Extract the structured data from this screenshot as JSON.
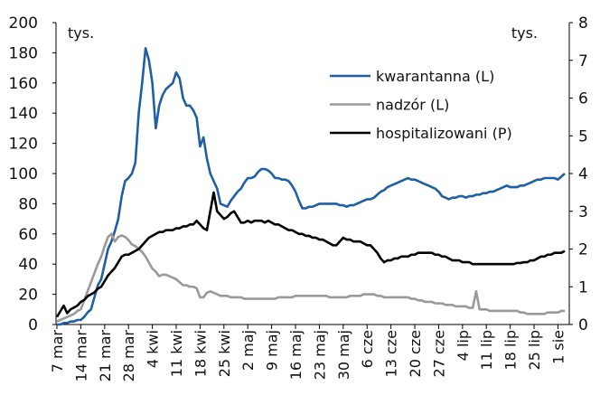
{
  "chart_data": {
    "type": "line",
    "annotations": [
      "tys.",
      "tys."
    ],
    "categories": [
      "7 mar",
      null,
      null,
      null,
      null,
      null,
      null,
      "14 mar",
      null,
      null,
      null,
      null,
      null,
      null,
      "21 mar",
      null,
      null,
      null,
      null,
      null,
      null,
      "28 mar",
      null,
      null,
      null,
      null,
      null,
      null,
      "4 kwi",
      null,
      null,
      null,
      null,
      null,
      null,
      "11 kwi",
      null,
      null,
      null,
      null,
      null,
      null,
      "18 kwi",
      null,
      null,
      null,
      null,
      null,
      null,
      "25 kwi",
      null,
      null,
      null,
      null,
      null,
      null,
      "2 maj",
      null,
      null,
      null,
      null,
      null,
      null,
      "9 maj",
      null,
      null,
      null,
      null,
      null,
      null,
      "16 maj",
      null,
      null,
      null,
      null,
      null,
      null,
      "23 maj",
      null,
      null,
      null,
      null,
      null,
      null,
      "30 maj",
      null,
      null,
      null,
      null,
      null,
      null,
      "6 cze",
      null,
      null,
      null,
      null,
      null,
      null,
      "13 cze",
      null,
      null,
      null,
      null,
      null,
      null,
      "20 cze",
      null,
      null,
      null,
      null,
      null,
      null,
      "27 cze",
      null,
      null,
      null,
      null,
      null,
      null,
      "4 lip",
      null,
      null,
      null,
      null,
      null,
      null,
      "11 lip",
      null,
      null,
      null,
      null,
      null,
      null,
      "18 lip",
      null,
      null,
      null,
      null,
      null,
      null,
      "25 lip",
      null,
      null,
      null,
      null,
      null,
      null,
      "1 sie",
      null,
      null
    ],
    "series": [
      {
        "name": "kwarantanna (L)",
        "color": "#1f5fa6",
        "axis": "y",
        "values": [
          0,
          0,
          1,
          1,
          2,
          2,
          3,
          3,
          5,
          8,
          10,
          18,
          26,
          30,
          40,
          50,
          55,
          62,
          70,
          85,
          95,
          97,
          100,
          107,
          140,
          160,
          183,
          175,
          160,
          130,
          145,
          152,
          156,
          158,
          160,
          167,
          163,
          150,
          145,
          145,
          142,
          137,
          118,
          124,
          110,
          100,
          95,
          90,
          80,
          79,
          78,
          82,
          85,
          88,
          90,
          94,
          97,
          97,
          98,
          101,
          103,
          103,
          102,
          100,
          97,
          97,
          96,
          96,
          95,
          92,
          88,
          82,
          77,
          77,
          78,
          78,
          79,
          80,
          80,
          80,
          80,
          80,
          80,
          79,
          79,
          78,
          79,
          79,
          80,
          81,
          82,
          83,
          83,
          84,
          86,
          88,
          89,
          91,
          92,
          93,
          94,
          95,
          96,
          97,
          96,
          96,
          95,
          94,
          93,
          92,
          91,
          90,
          88,
          85,
          84,
          83,
          84,
          84,
          85,
          85,
          84,
          85,
          85,
          86,
          86,
          87,
          87,
          88,
          88,
          89,
          90,
          91,
          92,
          91,
          91,
          91,
          92,
          92,
          93,
          94,
          95,
          96,
          96,
          97,
          97,
          97,
          97,
          96,
          98,
          100
        ]
      },
      {
        "name": "nadzór (L)",
        "color": "#999999",
        "axis": "y",
        "values": [
          2,
          3,
          4,
          5,
          6,
          7,
          9,
          10,
          16,
          22,
          28,
          34,
          40,
          45,
          52,
          58,
          60,
          55,
          58,
          59,
          58,
          56,
          53,
          52,
          50,
          48,
          45,
          41,
          37,
          35,
          32,
          33,
          33,
          32,
          31,
          30,
          28,
          26,
          26,
          25,
          25,
          24,
          18,
          18,
          21,
          22,
          21,
          20,
          19,
          19,
          19,
          18,
          18,
          18,
          18,
          17,
          17,
          17,
          17,
          17,
          17,
          17,
          17,
          17,
          17,
          18,
          18,
          18,
          18,
          18,
          19,
          19,
          19,
          19,
          19,
          19,
          19,
          19,
          19,
          19,
          18,
          18,
          18,
          18,
          18,
          18,
          19,
          19,
          19,
          19,
          20,
          20,
          20,
          20,
          19,
          19,
          18,
          18,
          18,
          18,
          18,
          18,
          18,
          18,
          17,
          17,
          16,
          16,
          15,
          15,
          15,
          14,
          14,
          14,
          13,
          13,
          13,
          12,
          12,
          12,
          12,
          11,
          11,
          22,
          10,
          10,
          10,
          9,
          9,
          9,
          9,
          9,
          9,
          9,
          9,
          9,
          8,
          8,
          7,
          7,
          7,
          7,
          7,
          7,
          8,
          8,
          8,
          8,
          9,
          9
        ]
      },
      {
        "name": "hospitalizowani (P)",
        "color": "#000000",
        "axis": "y2",
        "values": [
          0.2,
          0.35,
          0.5,
          0.3,
          0.4,
          0.45,
          0.5,
          0.6,
          0.65,
          0.75,
          0.8,
          0.85,
          0.95,
          1.0,
          1.15,
          1.3,
          1.4,
          1.5,
          1.65,
          1.8,
          1.85,
          1.85,
          1.9,
          1.95,
          2.0,
          2.1,
          2.2,
          2.3,
          2.35,
          2.4,
          2.45,
          2.45,
          2.5,
          2.5,
          2.5,
          2.55,
          2.55,
          2.6,
          2.6,
          2.65,
          2.65,
          2.75,
          2.65,
          2.55,
          2.5,
          3.0,
          3.5,
          3.0,
          2.9,
          2.8,
          2.85,
          2.95,
          3.0,
          2.85,
          2.7,
          2.7,
          2.75,
          2.7,
          2.75,
          2.75,
          2.75,
          2.7,
          2.75,
          2.7,
          2.65,
          2.65,
          2.6,
          2.55,
          2.5,
          2.5,
          2.45,
          2.4,
          2.4,
          2.35,
          2.35,
          2.3,
          2.3,
          2.25,
          2.25,
          2.2,
          2.15,
          2.1,
          2.1,
          2.2,
          2.3,
          2.25,
          2.25,
          2.2,
          2.2,
          2.2,
          2.15,
          2.1,
          2.1,
          2.0,
          1.9,
          1.75,
          1.65,
          1.7,
          1.7,
          1.75,
          1.75,
          1.8,
          1.8,
          1.8,
          1.85,
          1.85,
          1.9,
          1.9,
          1.9,
          1.9,
          1.9,
          1.85,
          1.85,
          1.8,
          1.8,
          1.75,
          1.7,
          1.7,
          1.7,
          1.65,
          1.65,
          1.65,
          1.6,
          1.6,
          1.6,
          1.6,
          1.6,
          1.6,
          1.6,
          1.6,
          1.6,
          1.6,
          1.6,
          1.6,
          1.6,
          1.63,
          1.63,
          1.65,
          1.65,
          1.7,
          1.7,
          1.75,
          1.8,
          1.8,
          1.85,
          1.85,
          1.9,
          1.9,
          1.9,
          1.95
        ]
      }
    ],
    "ylim": [
      0,
      200
    ],
    "yticks": [
      0,
      20,
      40,
      60,
      80,
      100,
      120,
      140,
      160,
      180,
      200
    ],
    "y2lim": [
      0,
      8
    ],
    "y2ticks": [
      0,
      1,
      2,
      3,
      4,
      5,
      6,
      7,
      8
    ],
    "grid": false,
    "legend": "upper right"
  }
}
